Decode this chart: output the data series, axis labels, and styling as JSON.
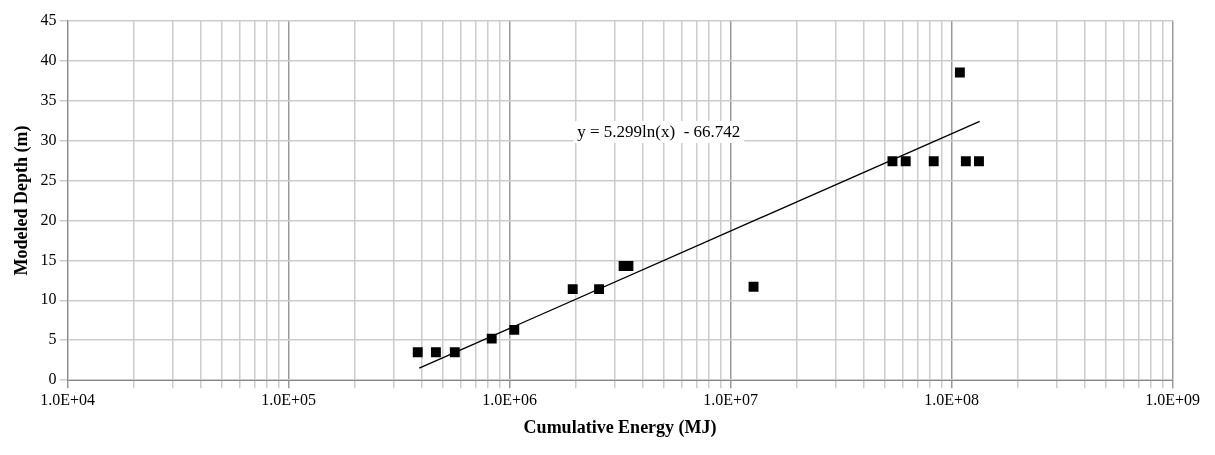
{
  "chart_data": {
    "type": "scatter",
    "xlabel": "Cumulative Energy (MJ)",
    "ylabel": "Modeled Depth (m)",
    "log": "x",
    "grid": true,
    "legend": false,
    "xlim": [
      10000,
      1000000000
    ],
    "ylim": [
      0,
      45
    ],
    "yticks": [
      0,
      5,
      10,
      15,
      20,
      25,
      30,
      35,
      40,
      45
    ],
    "xticks": [
      {
        "value": 10000,
        "label": "1.0E+04"
      },
      {
        "value": 20000,
        "label": null
      },
      {
        "value": 30000,
        "label": null
      },
      {
        "value": 40000,
        "label": null
      },
      {
        "value": 50000,
        "label": null
      },
      {
        "value": 60000,
        "label": null
      },
      {
        "value": 70000,
        "label": null
      },
      {
        "value": 80000,
        "label": null
      },
      {
        "value": 90000,
        "label": null
      },
      {
        "value": 100000,
        "label": "1.0E+05"
      },
      {
        "value": 200000,
        "label": null
      },
      {
        "value": 300000,
        "label": null
      },
      {
        "value": 400000,
        "label": null
      },
      {
        "value": 500000,
        "label": null
      },
      {
        "value": 600000,
        "label": null
      },
      {
        "value": 700000,
        "label": null
      },
      {
        "value": 800000,
        "label": null
      },
      {
        "value": 900000,
        "label": null
      },
      {
        "value": 1000000,
        "label": "1.0E+06"
      },
      {
        "value": 2000000,
        "label": null
      },
      {
        "value": 3000000,
        "label": null
      },
      {
        "value": 4000000,
        "label": null
      },
      {
        "value": 5000000,
        "label": null
      },
      {
        "value": 6000000,
        "label": null
      },
      {
        "value": 7000000,
        "label": null
      },
      {
        "value": 8000000,
        "label": null
      },
      {
        "value": 9000000,
        "label": null
      },
      {
        "value": 10000000,
        "label": "1.0E+07"
      },
      {
        "value": 20000000,
        "label": null
      },
      {
        "value": 30000000,
        "label": null
      },
      {
        "value": 40000000,
        "label": null
      },
      {
        "value": 50000000,
        "label": null
      },
      {
        "value": 60000000,
        "label": null
      },
      {
        "value": 70000000,
        "label": null
      },
      {
        "value": 80000000,
        "label": null
      },
      {
        "value": 90000000,
        "label": null
      },
      {
        "value": 100000000,
        "label": "1.0E+08"
      },
      {
        "value": 200000000,
        "label": null
      },
      {
        "value": 300000000,
        "label": null
      },
      {
        "value": 400000000,
        "label": null
      },
      {
        "value": 500000000,
        "label": null
      },
      {
        "value": 600000000,
        "label": null
      },
      {
        "value": 700000000,
        "label": null
      },
      {
        "value": 800000000,
        "label": null
      },
      {
        "value": 900000000,
        "label": null
      },
      {
        "value": 1000000000,
        "label": "1.0E+09"
      }
    ],
    "series": [
      {
        "type": "scatter",
        "color": "#000000",
        "marker": "square",
        "x": [
          384000,
          464000,
          565000,
          830000,
          1050000,
          1930000,
          2540000,
          3280000,
          3450000,
          12700000,
          54000000,
          62000000,
          83000000,
          109000000,
          116000000,
          133000000
        ],
        "values": [
          3.5,
          3.5,
          3.5,
          5.2,
          6.3,
          11.4,
          11.4,
          14.3,
          14.3,
          11.7,
          27.4,
          27.4,
          27.4,
          38.5,
          27.4,
          27.4
        ]
      },
      {
        "type": "line",
        "color": "#000000",
        "marker": "none",
        "line_style": "solid",
        "x": [
          390000,
          134000000
        ],
        "values": [
          1.5,
          32.4
        ]
      }
    ],
    "annotations": [
      "y = 5.299ln(x)  - 66.742"
    ]
  }
}
